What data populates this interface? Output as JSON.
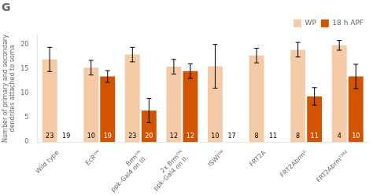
{
  "chart_data": {
    "type": "bar",
    "title": "G",
    "ylabel": "Number of primary and secondary\ndendrites attached to soma",
    "categories": [
      "Wild type",
      "EcRᴰᴺ",
      "Brmᴰᴺ\nppk-Gal4 on III.",
      "2x Brmᴰᴺ\nppk-Gal4 on II.",
      "ISWIᴰᴺ",
      "FRT2A",
      "FRT2Abrm²",
      "FRT2Abrmᵀ³⁸²"
    ],
    "series": [
      {
        "name": "WP",
        "color": "#F5CBA7",
        "values": [
          17.0,
          15.3,
          18.0,
          15.5,
          15.6,
          17.8,
          19.0,
          19.9
        ],
        "errors": [
          2.5,
          1.5,
          1.5,
          1.5,
          4.5,
          1.5,
          1.5,
          1.0
        ],
        "n": [
          23,
          10,
          23,
          12,
          10,
          8,
          8,
          4
        ]
      },
      {
        "name": "18 h APF",
        "color": "#D35400",
        "values": [
          null,
          13.5,
          6.5,
          14.6,
          null,
          null,
          9.4,
          13.5
        ],
        "errors": [
          null,
          1.2,
          2.5,
          1.5,
          null,
          null,
          1.8,
          2.5
        ],
        "n": [
          19,
          19,
          20,
          12,
          17,
          11,
          11,
          10
        ]
      }
    ],
    "ylim": [
      0,
      22
    ],
    "yticks": [
      0,
      5,
      10,
      15,
      20
    ],
    "grid": false,
    "legend": "upper right"
  }
}
